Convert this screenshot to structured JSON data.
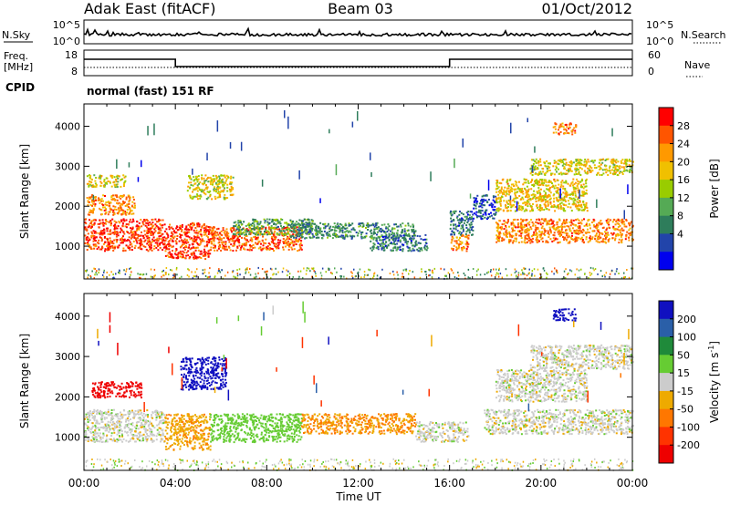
{
  "header": {
    "station": "Adak East (fitACF)",
    "beam": "Beam 03",
    "date": "01/Oct/2012"
  },
  "top_panels": {
    "nsky_label": "N.Sky",
    "nsky_ticks": [
      "10^5",
      "10^0"
    ],
    "nsearch_label": "N.Search",
    "nsearch_ticks": [
      "10^5",
      "10^0"
    ],
    "freq_label": "Freq.",
    "freq_unit": "[MHz]",
    "freq_ticks": [
      "18",
      "8"
    ],
    "nave_label": "Nave",
    "nave_ticks": [
      "60",
      "0"
    ],
    "cpid_label": "CPID",
    "cpid_value": "normal (fast) 151 RF",
    "freq_data": {
      "x_hours": [
        0,
        4,
        4,
        16,
        16,
        24
      ],
      "freq_level": [
        "high",
        "high",
        "low",
        "low",
        "high",
        "high"
      ]
    }
  },
  "axes": {
    "xlabel": "Time UT",
    "ylabel": "Slant Range [km]",
    "xticks": [
      "00:00",
      "04:00",
      "08:00",
      "12:00",
      "16:00",
      "20:00",
      "00:00"
    ],
    "yticks": [
      "1000",
      "2000",
      "3000",
      "4000"
    ]
  },
  "colorbars": {
    "power": {
      "label": "Power [dB]",
      "ticks": [
        "28",
        "24",
        "20",
        "16",
        "12",
        "8",
        "4"
      ],
      "colors": [
        "#ff0000",
        "#ff5500",
        "#ff9900",
        "#f0c000",
        "#99cc00",
        "#55aa55",
        "#2e7d5b",
        "#2244aa",
        "#0000ee"
      ]
    },
    "velocity": {
      "label": "Velocity [m s",
      "label_sup": "-1",
      "label_end": "]",
      "ticks": [
        "200",
        "100",
        "50",
        "15",
        "-15",
        "-50",
        "-100",
        "-200"
      ],
      "colors": [
        "#1010c0",
        "#2a5fa8",
        "#1f8a3a",
        "#66cc33",
        "#cccccc",
        "#eeaa00",
        "#ff7700",
        "#ff3300",
        "#ee0000"
      ]
    }
  },
  "chart_data": [
    {
      "type": "heatmap",
      "title": "Power",
      "xlabel": "Time UT",
      "ylabel": "Slant Range [km]",
      "xlim_hours": [
        0,
        24
      ],
      "ylim_km": [
        180,
        4560
      ],
      "colorbar_label": "Power [dB]",
      "colorbar_ticks": [
        28,
        24,
        20,
        16,
        12,
        8,
        4
      ],
      "regions": [
        {
          "t0": 0.0,
          "t1": 3.5,
          "r0": 900,
          "r1": 1700,
          "value": 28
        },
        {
          "t0": 0.1,
          "t1": 2.2,
          "r0": 1800,
          "r1": 2300,
          "value": 24
        },
        {
          "t0": 0.1,
          "t1": 1.8,
          "r0": 2500,
          "r1": 2800,
          "value": 18
        },
        {
          "t0": 3.5,
          "t1": 5.5,
          "r0": 700,
          "r1": 1600,
          "value": 28
        },
        {
          "t0": 4.5,
          "t1": 6.5,
          "r0": 2200,
          "r1": 2800,
          "value": 18
        },
        {
          "t0": 5.5,
          "t1": 9.5,
          "r0": 900,
          "r1": 1500,
          "value": 26
        },
        {
          "t0": 6.5,
          "t1": 10.0,
          "r0": 1300,
          "r1": 1700,
          "value": 12
        },
        {
          "t0": 9.0,
          "t1": 14.5,
          "r0": 1200,
          "r1": 1600,
          "value": 10
        },
        {
          "t0": 12.5,
          "t1": 15.0,
          "r0": 900,
          "r1": 1300,
          "value": 8
        },
        {
          "t0": 16.0,
          "t1": 16.8,
          "r0": 900,
          "r1": 1300,
          "value": 24
        },
        {
          "t0": 16.0,
          "t1": 17.0,
          "r0": 1300,
          "r1": 1900,
          "value": 8
        },
        {
          "t0": 17.0,
          "t1": 18.0,
          "r0": 1700,
          "r1": 2300,
          "value": 6
        },
        {
          "t0": 18.0,
          "t1": 24.0,
          "r0": 1100,
          "r1": 1700,
          "value": 24
        },
        {
          "t0": 18.0,
          "t1": 22.0,
          "r0": 1900,
          "r1": 2700,
          "value": 20
        },
        {
          "t0": 19.5,
          "t1": 24.0,
          "r0": 2800,
          "r1": 3200,
          "value": 18
        },
        {
          "t0": 20.5,
          "t1": 21.5,
          "r0": 3800,
          "r1": 4100,
          "value": 24
        }
      ]
    },
    {
      "type": "heatmap",
      "title": "Velocity",
      "xlabel": "Time UT",
      "ylabel": "Slant Range [km]",
      "xlim_hours": [
        0,
        24
      ],
      "ylim_km": [
        180,
        4560
      ],
      "colorbar_label": "Velocity [m s-1]",
      "colorbar_ticks": [
        200,
        100,
        50,
        15,
        -15,
        -50,
        -100,
        -200
      ],
      "regions": [
        {
          "t0": 0.0,
          "t1": 3.5,
          "r0": 900,
          "r1": 1700,
          "value": 0
        },
        {
          "t0": 0.3,
          "t1": 2.5,
          "r0": 2000,
          "r1": 2400,
          "value": -200
        },
        {
          "t0": 3.5,
          "t1": 5.5,
          "r0": 700,
          "r1": 1600,
          "value": -40
        },
        {
          "t0": 4.2,
          "t1": 6.2,
          "r0": 2200,
          "r1": 3000,
          "value": 200
        },
        {
          "t0": 5.5,
          "t1": 9.5,
          "r0": 900,
          "r1": 1600,
          "value": 50
        },
        {
          "t0": 9.5,
          "t1": 14.5,
          "r0": 1100,
          "r1": 1600,
          "value": -50
        },
        {
          "t0": 14.5,
          "t1": 16.8,
          "r0": 900,
          "r1": 1400,
          "value": 0
        },
        {
          "t0": 17.5,
          "t1": 24.0,
          "r0": 1100,
          "r1": 1700,
          "value": 0
        },
        {
          "t0": 18.0,
          "t1": 22.0,
          "r0": 1900,
          "r1": 2700,
          "value": 0
        },
        {
          "t0": 19.5,
          "t1": 24.0,
          "r0": 2700,
          "r1": 3300,
          "value": 0
        },
        {
          "t0": 20.5,
          "t1": 21.5,
          "r0": 3900,
          "r1": 4200,
          "value": 200
        }
      ]
    }
  ]
}
